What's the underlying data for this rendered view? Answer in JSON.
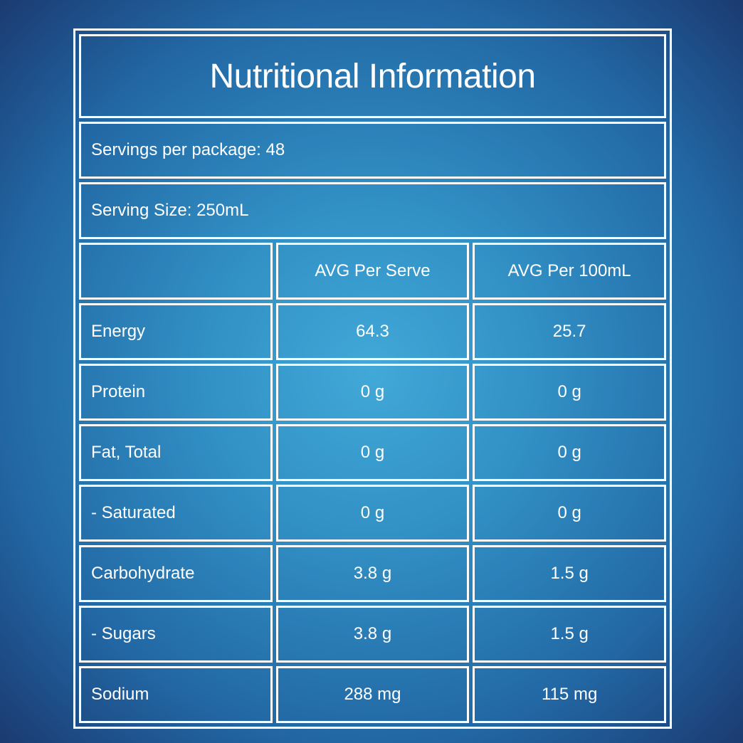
{
  "panel": {
    "title": "Nutritional Information",
    "servings_line": "Servings per package: 48",
    "serving_size_line": "Serving Size: 250mL",
    "table": {
      "columns": [
        "",
        "AVG Per Serve",
        "AVG Per 100mL"
      ],
      "rows": [
        {
          "label": "Energy",
          "per_serve": "64.3",
          "per_100ml": "25.7"
        },
        {
          "label": "Protein",
          "per_serve": "0 g",
          "per_100ml": "0 g"
        },
        {
          "label": "Fat, Total",
          "per_serve": "0 g",
          "per_100ml": "0 g"
        },
        {
          "label": "- Saturated",
          "per_serve": "0 g",
          "per_100ml": "0 g"
        },
        {
          "label": "Carbohydrate",
          "per_serve": "3.8 g",
          "per_100ml": "1.5 g"
        },
        {
          "label": "- Sugars",
          "per_serve": "3.8 g",
          "per_100ml": "1.5 g"
        },
        {
          "label": "Sodium",
          "per_serve": "288 mg",
          "per_100ml": "115 mg"
        }
      ]
    }
  },
  "colors": {
    "background_center": "#41a9d8",
    "background_inner": "#318fc4",
    "background_mid": "#2268a5",
    "background_edge": "#1b3a71",
    "border": "#fbfdfe",
    "text": "#ffffff"
  }
}
